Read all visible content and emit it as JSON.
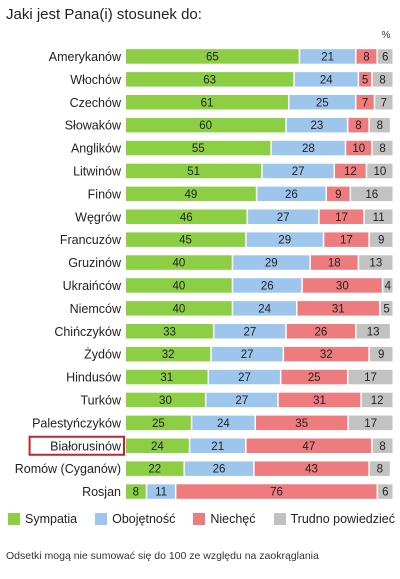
{
  "title": "Jaki jest Pana(i) stosunek do:",
  "unit": "%",
  "footnote": "Odsetki mogą nie sumować się do 100 ze względu na zaokrąglania",
  "highlighted_category": "Białorusinów",
  "colors": {
    "Sympatia": "#8ccf45",
    "Obojętność": "#9ec6ec",
    "Niechęć": "#ee7b7e",
    "Trudno powiedzieć": "#c2c2c2",
    "highlight_box": "#c8232c"
  },
  "chart_data": {
    "type": "bar",
    "orientation": "horizontal",
    "stacked": true,
    "title": "Jaki jest Pana(i) stosunek do:",
    "categories": [
      "Amerykanów",
      "Włochów",
      "Czechów",
      "Słowaków",
      "Anglików",
      "Litwinów",
      "Finów",
      "Węgrów",
      "Francuzów",
      "Gruzinów",
      "Ukraińców",
      "Niemców",
      "Chińczyków",
      "Żydów",
      "Hindusów",
      "Turków",
      "Palestyńczyków",
      "Białorusinów",
      "Romów (Cyganów)",
      "Rosjan"
    ],
    "series": [
      {
        "name": "Sympatia",
        "values": [
          65,
          63,
          61,
          60,
          55,
          51,
          49,
          46,
          45,
          40,
          40,
          40,
          33,
          32,
          31,
          30,
          25,
          24,
          22,
          8
        ]
      },
      {
        "name": "Obojętność",
        "values": [
          21,
          24,
          25,
          23,
          28,
          27,
          26,
          27,
          29,
          29,
          26,
          24,
          27,
          27,
          27,
          27,
          24,
          21,
          26,
          11
        ]
      },
      {
        "name": "Niechęć",
        "values": [
          8,
          5,
          7,
          8,
          10,
          12,
          9,
          17,
          17,
          18,
          30,
          31,
          26,
          32,
          25,
          31,
          35,
          47,
          43,
          76
        ]
      },
      {
        "name": "Trudno powiedzieć",
        "values": [
          6,
          8,
          7,
          8,
          8,
          10,
          16,
          11,
          9,
          13,
          4,
          5,
          13,
          9,
          17,
          12,
          17,
          8,
          8,
          6
        ]
      }
    ],
    "xlim": [
      0,
      100
    ],
    "legend_position": "bottom",
    "grid": false
  }
}
